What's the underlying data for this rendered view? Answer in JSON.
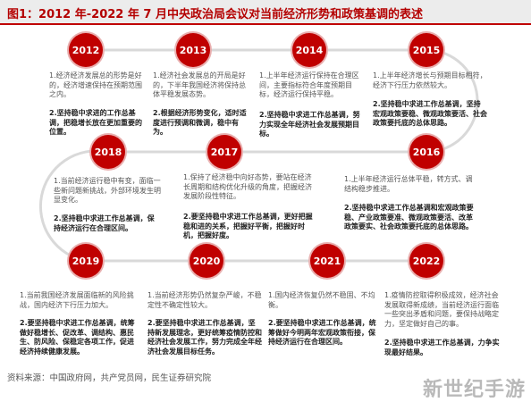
{
  "title": "图1：2012 年-2022 年 7 月中央政治局会议对当前经济形势和政策基调的表述",
  "source": "资料来源：中国政府网，共产党员网，民生证券研究院",
  "watermark": "新世纪手游",
  "colors": {
    "accent": "#c00000",
    "line": "#d9d9d9",
    "text": "#555555"
  },
  "years": {
    "y2012": {
      "label": "2012",
      "p1": "1.经济经济发展总的形势是好的，经济增速保持在预期范围之内。",
      "p2": "2.坚持稳中求进的工作总基调，把稳增长放在更加重要的位置。"
    },
    "y2013": {
      "label": "2013",
      "p1": "1.经济社会发展总的开局是好的，下半年我国经济将保持总体平稳发展态势。",
      "p2": "2.根据经济形势变化，适时适度进行预调和微调，稳中有为。"
    },
    "y2014": {
      "label": "2014",
      "p1": "1.上半年经济运行保持在合理区间，主要指标符合年度预期目标，经济运行保持平稳。",
      "p2": "2.坚持稳中求进工作总基调，努力实现全年经济社会发展预期目标。"
    },
    "y2015": {
      "label": "2015",
      "p1": "1.上半年经济增长与预期目标相符，经济下行压力依然较大。",
      "p2": "2.坚持稳中求进工作总基调，坚持宏观政策要稳、微观政策要活、社会政策要托底的总体思路。"
    },
    "y2016": {
      "label": "2016",
      "p1": "1.上半年经济运行总体平稳，转方式、调结构稳步推进。",
      "p2": "2.坚持稳中求进工作总基调和宏观政策要稳、产业政策要准、微观政策要活、改革政策要实、社会政策要托底的总体思路。"
    },
    "y2017": {
      "label": "2017",
      "p1": "1.保持了经济稳中向好态势，要站在经济长周期和结构优化升级的角度，把握经济发展阶段性特征。",
      "p2": "2.要坚持稳中求进工作总基调，更好把握稳和进的关系，把握好平衡，把握好时机，把握好度。"
    },
    "y2018": {
      "label": "2018",
      "p1": "1.当前经济运行稳中有变，面临一些新问题新挑战，外部环境发生明显变化。",
      "p2": "2.坚持稳中求进工作总基调，保持经济运行在合理区间。"
    },
    "y2019": {
      "label": "2019",
      "p1": "1.当前我国经济发展面临新的风险挑战，国内经济下行压力加大。",
      "p2": "2.要坚持稳中求进工作总基调，统筹做好稳增长、促改革、调结构、惠民生、防风险、保稳定各项工作，促进经济持续健康发展。"
    },
    "y2020": {
      "label": "2020",
      "p1": "1.当前经济形势仍然复杂严峻，不稳定性不确定性较大。",
      "p2": "2.要坚持稳中求进工作总基调，坚持新发展理念，更好统筹疫情防控和经济社会发展工作，努力完成全年经济社会发展目标任务。"
    },
    "y2021": {
      "label": "2021",
      "p1": "1.国内经济恢复仍然不稳固、不均衡。",
      "p2": "2.要坚持稳中求进工作总基调，统筹做好今明两年宏观政策衔接，保持经济运行在合理区间。"
    },
    "y2022": {
      "label": "2022",
      "p1": "1.疫情防控取得积极成效，经济社会发展取得新成绩，当前经济运行面临一些突出矛盾和问题，要保持战略定力，坚定做好自己的事。",
      "p2": "2.坚持稳中求进工作总基调，力争实现最好结果。"
    }
  }
}
